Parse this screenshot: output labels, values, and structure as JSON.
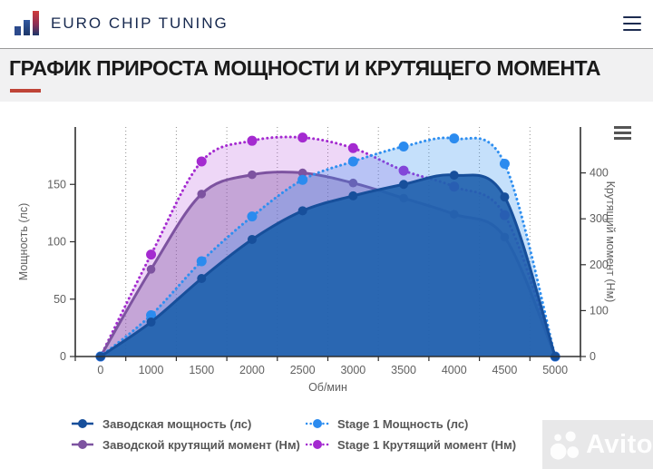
{
  "header": {
    "brand": "EURO CHIP TUNING"
  },
  "title": {
    "text": "ГРАФИК ПРИРОСТА МОЩНОСТИ И КРУТЯЩЕГО МОМЕНТА"
  },
  "colors": {
    "accent_red": "#bf4437",
    "brand_navy": "#17294f",
    "axis_text": "#606060",
    "factory_power_blue": "#1a529c",
    "stage1_power_blue": "#2f8ff0",
    "factory_torque_purple": "#7d53a0",
    "stage1_torque_magenta": "#a42ad0"
  },
  "chart_data": {
    "type": "line",
    "categories": [
      "0",
      "1000",
      "1500",
      "2000",
      "2500",
      "3000",
      "3500",
      "4000",
      "4500",
      "5000"
    ],
    "xlabel": "Об/мин",
    "grid": "vertical-dotted",
    "legend_position": "bottom",
    "y_left": {
      "label": "Мощность (лс)",
      "ticks": [
        0,
        50,
        100,
        150
      ],
      "max": 200
    },
    "y_right": {
      "label": "Крутящий момент (Нм)",
      "ticks": [
        0,
        100,
        200,
        300,
        400
      ],
      "max": 500
    },
    "series": [
      {
        "key": "factory_power",
        "name": "Заводская мощность (лс)",
        "axis": "left",
        "line": "solid",
        "color": "#174f9b",
        "dot_color": "#174f9b",
        "fill": "rgba(30,97,173,0.9)",
        "dot_r": 5,
        "values": [
          0,
          30,
          68,
          102,
          127,
          140,
          150,
          158,
          139,
          0
        ]
      },
      {
        "key": "stage1_power",
        "name": "Stage 1 Мощность (лс)",
        "axis": "left",
        "line": "dotted",
        "color": "#2f8ff0",
        "dot_color": "#2b8bef",
        "fill": "rgba(47,143,240,0.28)",
        "dot_r": 5.5,
        "values": [
          0,
          36,
          83,
          122,
          154,
          170,
          183,
          190,
          168,
          0
        ]
      },
      {
        "key": "factory_torque",
        "name": "Заводской крутящий момент (Нм)",
        "axis": "right",
        "line": "solid",
        "color": "#7d53a0",
        "dot_color": "#7d53a0",
        "fill": "rgba(134,89,168,0.4)",
        "dot_r": 4.8,
        "values": [
          0,
          190,
          354,
          396,
          400,
          378,
          345,
          310,
          260,
          0
        ]
      },
      {
        "key": "stage1_torque",
        "name": "Stage 1 Крутящий момент (Нм)",
        "axis": "right",
        "line": "dotted",
        "color": "#a42ad0",
        "dot_color": "#a42ad0",
        "fill": "rgba(168,53,214,0.2)",
        "dot_r": 5.5,
        "values": [
          0,
          222,
          425,
          470,
          477,
          454,
          405,
          370,
          308,
          0
        ]
      }
    ]
  },
  "watermark": {
    "text": "Avito"
  }
}
